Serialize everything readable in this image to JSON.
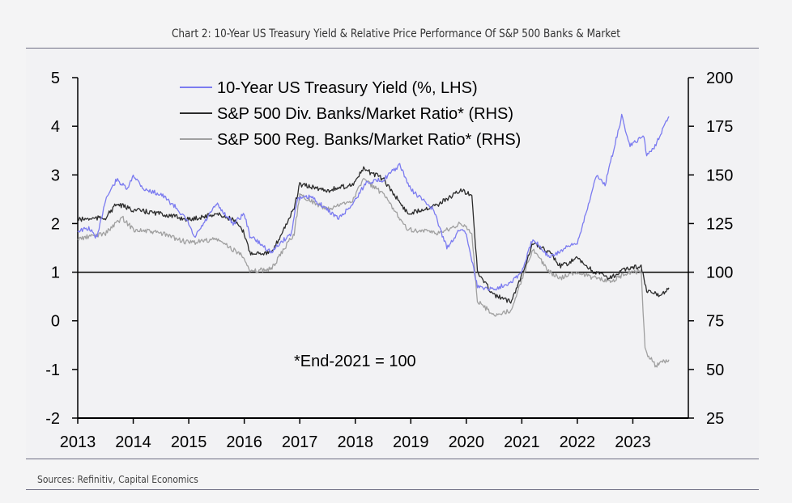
{
  "title": "Chart 2: 10-Year US Treasury Yield & Relative Price Performance Of S&P 500 Banks & Market",
  "source": "Sources: Refinitiv, Capital Economics",
  "chart_data": {
    "type": "line",
    "x_ticks": [
      "2013",
      "2014",
      "2015",
      "2016",
      "2017",
      "2018",
      "2019",
      "2020",
      "2021",
      "2022",
      "2023"
    ],
    "xlim": [
      2013,
      2024
    ],
    "y_left": {
      "ticks": [
        "5",
        "4",
        "3",
        "2",
        "1",
        "0",
        "-1",
        "-2"
      ],
      "lim": [
        -2,
        5
      ]
    },
    "y_right": {
      "ticks": [
        "200",
        "175",
        "150",
        "125",
        "100",
        "75",
        "50",
        "25"
      ],
      "lim": [
        25,
        200
      ]
    },
    "reference_line": {
      "axis": "left",
      "value": 1
    },
    "annotation": "*End-2021 = 100",
    "legend_position": "top-center",
    "series": [
      {
        "name": "10-Year US Treasury Yield (%, LHS)",
        "axis": "left",
        "color": "#7b7bf0",
        "x": [
          2013.0,
          2013.2,
          2013.35,
          2013.5,
          2013.7,
          2013.9,
          2014.0,
          2014.2,
          2014.5,
          2014.8,
          2015.0,
          2015.1,
          2015.5,
          2015.8,
          2016.0,
          2016.1,
          2016.5,
          2016.6,
          2016.85,
          2016.95,
          2017.2,
          2017.7,
          2017.95,
          2018.2,
          2018.5,
          2018.8,
          2019.0,
          2019.4,
          2019.65,
          2019.9,
          2020.0,
          2020.2,
          2020.5,
          2020.8,
          2021.0,
          2021.2,
          2021.5,
          2021.8,
          2022.0,
          2022.2,
          2022.35,
          2022.5,
          2022.8,
          2022.95,
          2023.2,
          2023.25,
          2023.4,
          2023.6,
          2023.65
        ],
        "y": [
          1.85,
          1.9,
          1.7,
          2.5,
          2.9,
          2.7,
          3.0,
          2.7,
          2.6,
          2.3,
          2.0,
          1.7,
          2.4,
          2.0,
          2.2,
          1.75,
          1.4,
          1.55,
          1.8,
          2.5,
          2.55,
          2.1,
          2.4,
          2.85,
          2.9,
          3.2,
          2.7,
          2.3,
          1.5,
          1.9,
          1.8,
          0.7,
          0.65,
          0.8,
          1.0,
          1.7,
          1.3,
          1.5,
          1.6,
          2.4,
          3.0,
          2.8,
          4.2,
          3.6,
          3.8,
          3.4,
          3.6,
          4.1,
          4.2
        ]
      },
      {
        "name": "S&P 500 Div. Banks/Market Ratio* (RHS)",
        "axis": "right",
        "color": "#2b2b2b",
        "x": [
          2013.0,
          2013.5,
          2013.7,
          2014.0,
          2014.5,
          2015.0,
          2015.5,
          2015.8,
          2016.0,
          2016.1,
          2016.5,
          2016.9,
          2017.0,
          2017.5,
          2017.95,
          2018.15,
          2018.5,
          2018.95,
          2019.5,
          2019.9,
          2020.1,
          2020.2,
          2020.5,
          2020.8,
          2020.95,
          2021.2,
          2021.5,
          2021.7,
          2022.0,
          2022.3,
          2022.6,
          2022.9,
          2023.15,
          2023.25,
          2023.5,
          2023.65
        ],
        "y": [
          127,
          128,
          135,
          132,
          130,
          127,
          130,
          127,
          120,
          110,
          110,
          133,
          145,
          142,
          145,
          153,
          148,
          130,
          135,
          142,
          140,
          100,
          88,
          85,
          95,
          115,
          110,
          103,
          107,
          100,
          97,
          102,
          103,
          90,
          88,
          92
        ]
      },
      {
        "name": "S&P 500 Reg. Banks/Market Ratio* (RHS)",
        "axis": "right",
        "color": "#a0a0a0",
        "x": [
          2013.0,
          2013.5,
          2013.8,
          2014.0,
          2014.5,
          2015.0,
          2015.5,
          2016.0,
          2016.1,
          2016.5,
          2016.9,
          2017.0,
          2017.5,
          2017.95,
          2018.15,
          2018.5,
          2018.95,
          2019.5,
          2019.9,
          2020.1,
          2020.2,
          2020.5,
          2020.8,
          2020.95,
          2021.2,
          2021.5,
          2021.7,
          2022.0,
          2022.3,
          2022.6,
          2022.9,
          2023.15,
          2023.22,
          2023.4,
          2023.65
        ],
        "y": [
          117,
          120,
          128,
          122,
          120,
          115,
          117,
          108,
          100,
          102,
          120,
          140,
          132,
          137,
          148,
          140,
          122,
          120,
          125,
          120,
          85,
          78,
          80,
          92,
          112,
          100,
          97,
          100,
          97,
          95,
          100,
          100,
          60,
          52,
          55
        ]
      }
    ]
  }
}
